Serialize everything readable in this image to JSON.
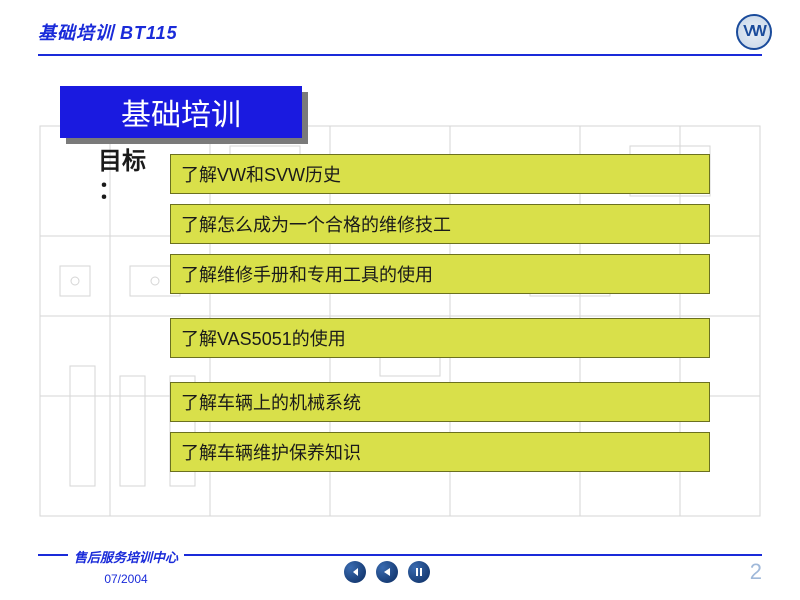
{
  "header": {
    "title": "基础培训 BT115",
    "logo_text": "VW"
  },
  "slide": {
    "title": "基础培训",
    "goals_label": "目标",
    "goals_colon": "：",
    "bar_bg": "#d9e04a",
    "bar_border": "#6b7020",
    "text_color": "#1a1a1a",
    "title_bg": "#1a1ae0",
    "title_fg": "#ffffff",
    "groups": [
      {
        "items": [
          "了解VW和SVW历史",
          "了解怎么成为一个合格的维修技工",
          "了解维修手册和专用工具的使用"
        ]
      },
      {
        "items": [
          "了解VAS5051的使用"
        ]
      },
      {
        "items": [
          "了解车辆上的机械系统",
          "了解车辆维护保养知识"
        ]
      }
    ]
  },
  "footer": {
    "org": "售后服务培训中心",
    "date": "07/2004",
    "page": "2"
  },
  "colors": {
    "brand_blue": "#1a2bd9",
    "nav_bg": "#0a2b60"
  }
}
